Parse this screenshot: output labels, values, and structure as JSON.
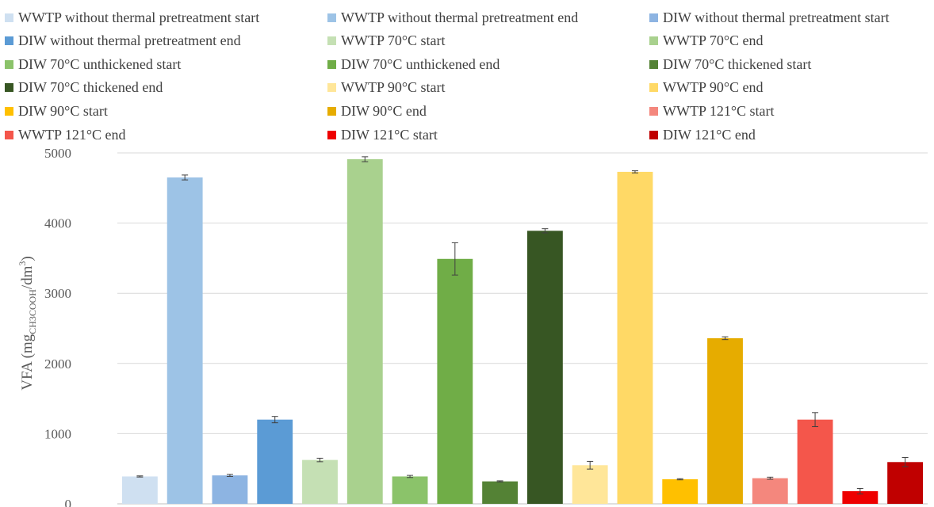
{
  "chart_data": {
    "type": "bar",
    "title": "",
    "xlabel": "",
    "ylabel": "VFA (mgCH3COOH/dm3)",
    "ylabel_parts": {
      "main": "VFA (mg",
      "sub": "CH3COOH",
      "mid": "/dm",
      "sup": "3",
      "end": ")"
    },
    "ylim": [
      0,
      5000
    ],
    "yticks": [
      0,
      1000,
      2000,
      3000,
      4000,
      5000
    ],
    "grid": true,
    "legend_position": "top",
    "error_bars": true,
    "series": [
      {
        "name": "WWTP without thermal pretreatment start",
        "value": 390,
        "error": 8,
        "color": "#cfe0f1"
      },
      {
        "name": "WWTP without thermal pretreatment end",
        "value": 4650,
        "error": 35,
        "color": "#9dc3e6"
      },
      {
        "name": "DIW without thermal pretreatment start",
        "value": 405,
        "error": 15,
        "color": "#8db4e2"
      },
      {
        "name": "DIW without thermal pretreatment end",
        "value": 1200,
        "error": 45,
        "color": "#5b9bd5"
      },
      {
        "name": "WWTP 70°C start",
        "value": 625,
        "error": 25,
        "color": "#c5e0b4"
      },
      {
        "name": "WWTP 70°C end",
        "value": 4910,
        "error": 35,
        "color": "#a9d18e"
      },
      {
        "name": "DIW 70°C unthickened start",
        "value": 390,
        "error": 15,
        "color": "#8bc36a"
      },
      {
        "name": "DIW 70°C unthickened end",
        "value": 3490,
        "error": 230,
        "color": "#70ad47"
      },
      {
        "name": "DIW 70°C thickened start",
        "value": 320,
        "error": 8,
        "color": "#548235"
      },
      {
        "name": "DIW 70°C thickened end",
        "value": 3890,
        "error": 30,
        "color": "#375623"
      },
      {
        "name": "WWTP 90°C start",
        "value": 550,
        "error": 55,
        "color": "#ffe699"
      },
      {
        "name": "WWTP 90°C end",
        "value": 4730,
        "error": 15,
        "color": "#ffd966"
      },
      {
        "name": "DIW 90°C start",
        "value": 350,
        "error": 8,
        "color": "#ffc000"
      },
      {
        "name": "DIW 90°C end",
        "value": 2360,
        "error": 20,
        "color": "#e6ac00"
      },
      {
        "name": "WWTP 121°C start",
        "value": 365,
        "error": 15,
        "color": "#f4877d"
      },
      {
        "name": "WWTP 121°C end",
        "value": 1200,
        "error": 100,
        "color": "#f4564b"
      },
      {
        "name": "DIW 121°C start",
        "value": 180,
        "error": 40,
        "color": "#ee0000"
      },
      {
        "name": "DIW 121°C end",
        "value": 595,
        "error": 65,
        "color": "#c00000"
      }
    ]
  }
}
